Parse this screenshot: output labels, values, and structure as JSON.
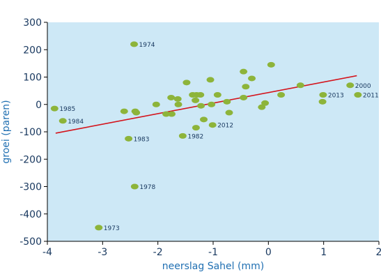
{
  "chart_data": {
    "type": "scatter",
    "xlabel": "neerslag Sahel (mm)",
    "ylabel": "groei (paren)",
    "xlim": [
      -4,
      2
    ],
    "ylim": [
      -500,
      300
    ],
    "x_ticks": [
      -4,
      -3,
      -2,
      -1,
      0,
      1,
      2
    ],
    "y_ticks": [
      -500,
      -400,
      -300,
      -200,
      -100,
      0,
      100,
      200,
      300
    ],
    "x_tick_labels": [
      "-4",
      "-3",
      "-2",
      "-1",
      "0",
      "1",
      "2"
    ],
    "y_tick_labels": [
      "-500",
      "-400",
      "-300",
      "-200",
      "-100",
      "0",
      "100",
      "200",
      "300"
    ],
    "grid": false,
    "colors": {
      "plot_background": "#cde8f6",
      "point": "#8db43a",
      "trendline": "#d4141c",
      "axis": "#000000"
    },
    "trendline": {
      "x": [
        -3.85,
        1.6
      ],
      "y": [
        -105,
        105
      ]
    },
    "points": [
      {
        "x": -3.87,
        "y": -15,
        "label": "1985"
      },
      {
        "x": -3.72,
        "y": -60,
        "label": "1984"
      },
      {
        "x": -3.07,
        "y": -450,
        "label": "1973"
      },
      {
        "x": -2.61,
        "y": -25,
        "label": ""
      },
      {
        "x": -2.53,
        "y": -125,
        "label": "1983"
      },
      {
        "x": -2.42,
        "y": -300,
        "label": "1978"
      },
      {
        "x": -2.43,
        "y": 220,
        "label": "1974"
      },
      {
        "x": -2.41,
        "y": -25,
        "label": ""
      },
      {
        "x": -2.39,
        "y": -30,
        "label": ""
      },
      {
        "x": -2.03,
        "y": 0,
        "label": ""
      },
      {
        "x": -1.85,
        "y": -35,
        "label": ""
      },
      {
        "x": -1.76,
        "y": 25,
        "label": ""
      },
      {
        "x": -1.75,
        "y": -35,
        "label": ""
      },
      {
        "x": -1.64,
        "y": 20,
        "label": ""
      },
      {
        "x": -1.63,
        "y": 0,
        "label": ""
      },
      {
        "x": -1.55,
        "y": -115,
        "label": "1982"
      },
      {
        "x": -1.48,
        "y": 80,
        "label": ""
      },
      {
        "x": -1.37,
        "y": 35,
        "label": ""
      },
      {
        "x": -1.32,
        "y": 15,
        "label": ""
      },
      {
        "x": -1.3,
        "y": 35,
        "label": ""
      },
      {
        "x": -1.31,
        "y": -85,
        "label": ""
      },
      {
        "x": -1.23,
        "y": 35,
        "label": ""
      },
      {
        "x": -1.22,
        "y": -5,
        "label": ""
      },
      {
        "x": -1.17,
        "y": -55,
        "label": ""
      },
      {
        "x": -1.05,
        "y": 90,
        "label": ""
      },
      {
        "x": -1.03,
        "y": 0,
        "label": ""
      },
      {
        "x": -1.01,
        "y": -75,
        "label": "2012"
      },
      {
        "x": -0.92,
        "y": 35,
        "label": ""
      },
      {
        "x": -0.75,
        "y": 10,
        "label": ""
      },
      {
        "x": -0.71,
        "y": -30,
        "label": ""
      },
      {
        "x": -0.45,
        "y": 120,
        "label": ""
      },
      {
        "x": -0.45,
        "y": 25,
        "label": ""
      },
      {
        "x": -0.41,
        "y": 65,
        "label": ""
      },
      {
        "x": -0.3,
        "y": 95,
        "label": ""
      },
      {
        "x": -0.12,
        "y": -10,
        "label": ""
      },
      {
        "x": -0.06,
        "y": 5,
        "label": ""
      },
      {
        "x": 0.05,
        "y": 145,
        "label": ""
      },
      {
        "x": 0.23,
        "y": 35,
        "label": ""
      },
      {
        "x": 0.58,
        "y": 70,
        "label": ""
      },
      {
        "x": 0.98,
        "y": 10,
        "label": ""
      },
      {
        "x": 0.99,
        "y": 35,
        "label": "2013"
      },
      {
        "x": 1.48,
        "y": 70,
        "label": "2000"
      },
      {
        "x": 1.62,
        "y": 35,
        "label": "2011"
      }
    ]
  }
}
